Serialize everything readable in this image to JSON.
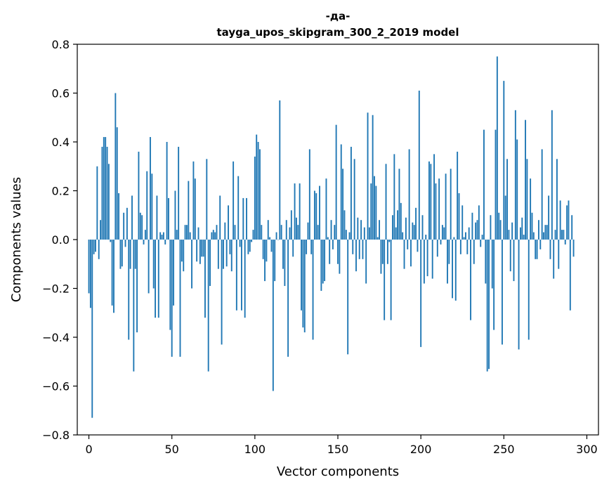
{
  "chart_data": {
    "type": "bar",
    "title": "-да-",
    "subtitle": "tayga_upos_skipgram_300_2_2019 model",
    "xlabel": "Vector components",
    "ylabel": "Components values",
    "xlim": [
      -7,
      307
    ],
    "ylim": [
      -0.8,
      0.8
    ],
    "xticks": [
      0,
      50,
      100,
      150,
      200,
      250,
      300
    ],
    "yticks": [
      -0.8,
      -0.6,
      -0.4,
      -0.2,
      0.0,
      0.2,
      0.4,
      0.6,
      0.8
    ],
    "xtick_labels": [
      "0",
      "50",
      "100",
      "150",
      "200",
      "250",
      "300"
    ],
    "ytick_labels": [
      "−0.8",
      "−0.6",
      "−0.4",
      "−0.2",
      "0.0",
      "0.2",
      "0.4",
      "0.6",
      "0.8"
    ],
    "grid": false,
    "bar_color": "#1f77b4",
    "values": [
      -0.22,
      -0.28,
      -0.73,
      -0.06,
      -0.05,
      0.3,
      -0.08,
      0.08,
      0.38,
      0.42,
      0.42,
      0.38,
      0.31,
      -0.01,
      -0.27,
      -0.3,
      0.6,
      0.46,
      0.19,
      -0.12,
      -0.11,
      0.11,
      -0.03,
      0.13,
      -0.41,
      -0.12,
      0.18,
      -0.54,
      -0.12,
      -0.38,
      0.36,
      0.11,
      0.1,
      -0.02,
      0.04,
      0.28,
      -0.22,
      0.42,
      0.27,
      -0.2,
      -0.32,
      0.18,
      -0.32,
      0.03,
      0.02,
      0.03,
      -0.02,
      0.4,
      0.17,
      -0.37,
      -0.48,
      -0.27,
      0.2,
      0.04,
      0.38,
      -0.48,
      -0.09,
      -0.13,
      0.06,
      0.06,
      0.24,
      0.03,
      -0.2,
      0.32,
      0.25,
      -0.09,
      0.05,
      -0.1,
      -0.07,
      -0.07,
      -0.32,
      0.33,
      -0.54,
      -0.19,
      0.03,
      0.04,
      0.03,
      0.06,
      -0.12,
      0.18,
      -0.43,
      -0.12,
      0.07,
      -0.11,
      0.14,
      -0.06,
      -0.13,
      0.32,
      0.06,
      -0.29,
      0.26,
      -0.03,
      -0.29,
      0.17,
      -0.32,
      0.17,
      -0.06,
      -0.05,
      -0.01,
      0.04,
      0.34,
      0.43,
      0.4,
      0.37,
      0.06,
      -0.08,
      -0.17,
      -0.09,
      0.08,
      0.01,
      -0.05,
      -0.62,
      -0.17,
      0.03,
      0.0,
      0.57,
      0.06,
      -0.12,
      -0.19,
      0.08,
      -0.48,
      0.05,
      0.12,
      -0.07,
      0.23,
      0.09,
      0.06,
      0.23,
      -0.29,
      -0.36,
      -0.38,
      -0.06,
      0.07,
      0.37,
      -0.06,
      -0.41,
      0.2,
      0.19,
      0.06,
      0.22,
      -0.21,
      -0.18,
      -0.17,
      0.25,
      0.01,
      -0.1,
      0.08,
      -0.04,
      0.06,
      0.47,
      -0.1,
      -0.14,
      0.39,
      0.29,
      0.12,
      0.04,
      -0.47,
      0.03,
      0.38,
      -0.06,
      0.33,
      -0.13,
      0.09,
      -0.08,
      0.08,
      -0.08,
      0.05,
      -0.18,
      0.52,
      0.05,
      0.23,
      0.51,
      0.26,
      0.22,
      0.01,
      0.08,
      -0.14,
      -0.1,
      -0.33,
      0.31,
      -0.1,
      -0.01,
      -0.33,
      0.1,
      0.35,
      0.05,
      0.12,
      0.29,
      0.15,
      0.03,
      -0.12,
      0.09,
      -0.04,
      0.37,
      -0.11,
      0.07,
      0.06,
      0.13,
      -0.05,
      0.61,
      -0.44,
      0.1,
      -0.18,
      0.02,
      -0.15,
      0.32,
      0.31,
      -0.16,
      0.35,
      0.23,
      -0.07,
      0.25,
      -0.02,
      0.06,
      0.05,
      0.27,
      -0.18,
      -0.1,
      0.29,
      -0.24,
      0.01,
      -0.25,
      0.36,
      0.19,
      -0.06,
      0.14,
      0.01,
      0.03,
      -0.06,
      0.05,
      -0.33,
      0.11,
      -0.1,
      0.07,
      0.08,
      0.14,
      -0.03,
      0.02,
      0.45,
      -0.18,
      -0.54,
      -0.53,
      0.1,
      -0.2,
      -0.37,
      0.45,
      0.75,
      0.11,
      0.08,
      -0.43,
      0.65,
      0.18,
      0.33,
      0.04,
      -0.13,
      0.07,
      -0.17,
      0.53,
      0.41,
      -0.45,
      0.05,
      0.09,
      0.02,
      0.49,
      0.33,
      -0.41,
      0.25,
      0.11,
      0.03,
      -0.08,
      -0.08,
      0.08,
      -0.04,
      0.37,
      0.03,
      0.06,
      0.06,
      0.18,
      -0.08,
      0.53,
      -0.16,
      0.04,
      0.33,
      -0.12,
      0.16,
      0.04,
      0.04,
      -0.02,
      0.14,
      0.16,
      -0.29,
      0.1,
      -0.07
    ]
  }
}
